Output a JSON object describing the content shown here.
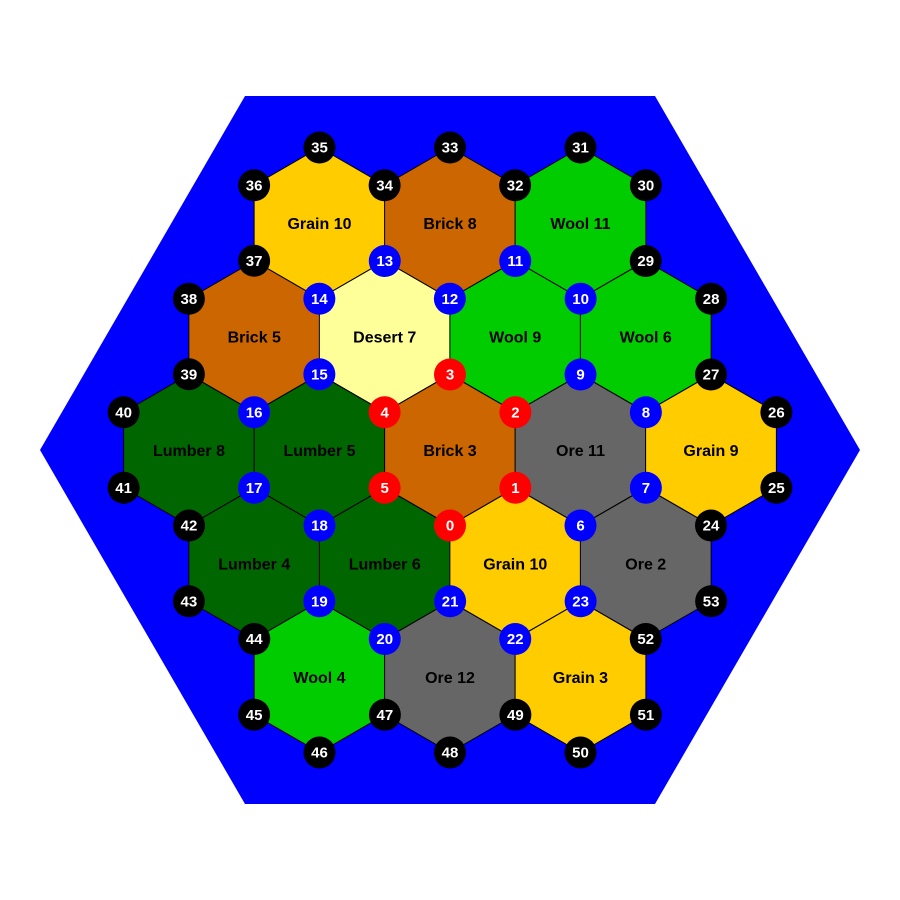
{
  "colors": {
    "sea": "#0000ff",
    "background": "#ffffff",
    "grain": "#ffcc00",
    "brick": "#cc6600",
    "wool": "#00cc00",
    "lumber": "#006600",
    "ore": "#666666",
    "desert": "#ffff99",
    "node_black": "#000000",
    "node_blue": "#0000ff",
    "node_red": "#ff0000"
  },
  "tiles": [
    {
      "resource": "grain",
      "number": 10,
      "label": "Grain 10",
      "col": -1,
      "row": -2
    },
    {
      "resource": "brick",
      "number": 8,
      "label": "Brick 8",
      "col": 0,
      "row": -2
    },
    {
      "resource": "wool",
      "number": 11,
      "label": "Wool 11",
      "col": 1,
      "row": -2
    },
    {
      "resource": "brick",
      "number": 5,
      "label": "Brick 5",
      "col": -1.5,
      "row": -1
    },
    {
      "resource": "desert",
      "number": 7,
      "label": "Desert 7",
      "col": -0.5,
      "row": -1
    },
    {
      "resource": "wool",
      "number": 9,
      "label": "Wool 9",
      "col": 0.5,
      "row": -1
    },
    {
      "resource": "wool",
      "number": 6,
      "label": "Wool 6",
      "col": 1.5,
      "row": -1
    },
    {
      "resource": "lumber",
      "number": 8,
      "label": "Lumber 8",
      "col": -2,
      "row": 0
    },
    {
      "resource": "lumber",
      "number": 5,
      "label": "Lumber 5",
      "col": -1,
      "row": 0
    },
    {
      "resource": "brick",
      "number": 3,
      "label": "Brick 3",
      "col": 0,
      "row": 0
    },
    {
      "resource": "ore",
      "number": 11,
      "label": "Ore 11",
      "col": 1,
      "row": 0
    },
    {
      "resource": "grain",
      "number": 9,
      "label": "Grain 9",
      "col": 2,
      "row": 0
    },
    {
      "resource": "lumber",
      "number": 4,
      "label": "Lumber 4",
      "col": -1.5,
      "row": 1
    },
    {
      "resource": "lumber",
      "number": 6,
      "label": "Lumber 6",
      "col": -0.5,
      "row": 1
    },
    {
      "resource": "grain",
      "number": 10,
      "label": "Grain 10",
      "col": 0.5,
      "row": 1
    },
    {
      "resource": "ore",
      "number": 2,
      "label": "Ore 2",
      "col": 1.5,
      "row": 1
    },
    {
      "resource": "wool",
      "number": 4,
      "label": "Wool 4",
      "col": -1,
      "row": 2
    },
    {
      "resource": "ore",
      "number": 12,
      "label": "Ore 12",
      "col": 0,
      "row": 2
    },
    {
      "resource": "grain",
      "number": 3,
      "label": "Grain 3",
      "col": 1,
      "row": 2
    }
  ],
  "nodes": [
    {
      "id": "0",
      "ring": "inner",
      "hex": [
        0,
        0
      ],
      "corner": 2
    },
    {
      "id": "1",
      "ring": "inner",
      "hex": [
        0,
        0
      ],
      "corner": 1
    },
    {
      "id": "2",
      "ring": "inner",
      "hex": [
        0,
        0
      ],
      "corner": 0
    },
    {
      "id": "3",
      "ring": "inner",
      "hex": [
        0,
        0
      ],
      "corner": 5
    },
    {
      "id": "4",
      "ring": "inner",
      "hex": [
        0,
        0
      ],
      "corner": 4
    },
    {
      "id": "5",
      "ring": "inner",
      "hex": [
        0,
        0
      ],
      "corner": 3
    },
    {
      "id": "6",
      "ring": "middle",
      "hex": [
        1,
        0
      ],
      "corner": 2
    },
    {
      "id": "7",
      "ring": "middle",
      "hex": [
        1,
        0
      ],
      "corner": 1
    },
    {
      "id": "8",
      "ring": "middle",
      "hex": [
        1,
        0
      ],
      "corner": 0
    },
    {
      "id": "9",
      "ring": "middle",
      "hex": [
        1,
        0
      ],
      "corner": 5
    },
    {
      "id": "10",
      "ring": "middle",
      "hex": [
        0.5,
        -1
      ],
      "corner": 0
    },
    {
      "id": "11",
      "ring": "middle",
      "hex": [
        0.5,
        -1
      ],
      "corner": 5
    },
    {
      "id": "12",
      "ring": "middle",
      "hex": [
        0.5,
        -1
      ],
      "corner": 4
    },
    {
      "id": "13",
      "ring": "middle",
      "hex": [
        -0.5,
        -1
      ],
      "corner": 5
    },
    {
      "id": "14",
      "ring": "middle",
      "hex": [
        -0.5,
        -1
      ],
      "corner": 4
    },
    {
      "id": "15",
      "ring": "middle",
      "hex": [
        -0.5,
        -1
      ],
      "corner": 3
    },
    {
      "id": "16",
      "ring": "middle",
      "hex": [
        -1,
        0
      ],
      "corner": 4
    },
    {
      "id": "17",
      "ring": "middle",
      "hex": [
        -1,
        0
      ],
      "corner": 3
    },
    {
      "id": "18",
      "ring": "middle",
      "hex": [
        -1,
        0
      ],
      "corner": 2
    },
    {
      "id": "19",
      "ring": "middle",
      "hex": [
        -0.5,
        1
      ],
      "corner": 3
    },
    {
      "id": "20",
      "ring": "middle",
      "hex": [
        -0.5,
        1
      ],
      "corner": 2
    },
    {
      "id": "21",
      "ring": "middle",
      "hex": [
        -0.5,
        1
      ],
      "corner": 1
    },
    {
      "id": "22",
      "ring": "middle",
      "hex": [
        0.5,
        1
      ],
      "corner": 2
    },
    {
      "id": "23",
      "ring": "middle",
      "hex": [
        0.5,
        1
      ],
      "corner": 1
    },
    {
      "id": "24",
      "ring": "outer",
      "hex": [
        2,
        0
      ],
      "corner": 2
    },
    {
      "id": "25",
      "ring": "outer",
      "hex": [
        2,
        0
      ],
      "corner": 1
    },
    {
      "id": "26",
      "ring": "outer",
      "hex": [
        2,
        0
      ],
      "corner": 0
    },
    {
      "id": "27",
      "ring": "outer",
      "hex": [
        2,
        0
      ],
      "corner": 5
    },
    {
      "id": "28",
      "ring": "outer",
      "hex": [
        1.5,
        -1
      ],
      "corner": 0
    },
    {
      "id": "29",
      "ring": "outer",
      "hex": [
        1.5,
        -1
      ],
      "corner": 5
    },
    {
      "id": "30",
      "ring": "outer",
      "hex": [
        1,
        -2
      ],
      "corner": 0
    },
    {
      "id": "31",
      "ring": "outer",
      "hex": [
        1,
        -2
      ],
      "corner": 5
    },
    {
      "id": "32",
      "ring": "outer",
      "hex": [
        1,
        -2
      ],
      "corner": 4
    },
    {
      "id": "33",
      "ring": "outer",
      "hex": [
        0,
        -2
      ],
      "corner": 5
    },
    {
      "id": "34",
      "ring": "outer",
      "hex": [
        0,
        -2
      ],
      "corner": 4
    },
    {
      "id": "35",
      "ring": "outer",
      "hex": [
        -1,
        -2
      ],
      "corner": 5
    },
    {
      "id": "36",
      "ring": "outer",
      "hex": [
        -1,
        -2
      ],
      "corner": 4
    },
    {
      "id": "37",
      "ring": "outer",
      "hex": [
        -1,
        -2
      ],
      "corner": 3
    },
    {
      "id": "38",
      "ring": "outer",
      "hex": [
        -1.5,
        -1
      ],
      "corner": 4
    },
    {
      "id": "39",
      "ring": "outer",
      "hex": [
        -1.5,
        -1
      ],
      "corner": 3
    },
    {
      "id": "40",
      "ring": "outer",
      "hex": [
        -2,
        0
      ],
      "corner": 4
    },
    {
      "id": "41",
      "ring": "outer",
      "hex": [
        -2,
        0
      ],
      "corner": 3
    },
    {
      "id": "42",
      "ring": "outer",
      "hex": [
        -2,
        0
      ],
      "corner": 2
    },
    {
      "id": "43",
      "ring": "outer",
      "hex": [
        -1.5,
        1
      ],
      "corner": 3
    },
    {
      "id": "44",
      "ring": "outer",
      "hex": [
        -1.5,
        1
      ],
      "corner": 2
    },
    {
      "id": "45",
      "ring": "outer",
      "hex": [
        -1,
        2
      ],
      "corner": 3
    },
    {
      "id": "46",
      "ring": "outer",
      "hex": [
        -1,
        2
      ],
      "corner": 2
    },
    {
      "id": "47",
      "ring": "outer",
      "hex": [
        -1,
        2
      ],
      "corner": 1
    },
    {
      "id": "48",
      "ring": "outer",
      "hex": [
        0,
        2
      ],
      "corner": 2
    },
    {
      "id": "49",
      "ring": "outer",
      "hex": [
        0,
        2
      ],
      "corner": 1
    },
    {
      "id": "50",
      "ring": "outer",
      "hex": [
        1,
        2
      ],
      "corner": 2
    },
    {
      "id": "51",
      "ring": "outer",
      "hex": [
        1,
        2
      ],
      "corner": 1
    },
    {
      "id": "52",
      "ring": "outer",
      "hex": [
        1.5,
        1
      ],
      "corner": 2
    },
    {
      "id": "53",
      "ring": "outer",
      "hex": [
        1.5,
        1
      ],
      "corner": 1
    }
  ]
}
